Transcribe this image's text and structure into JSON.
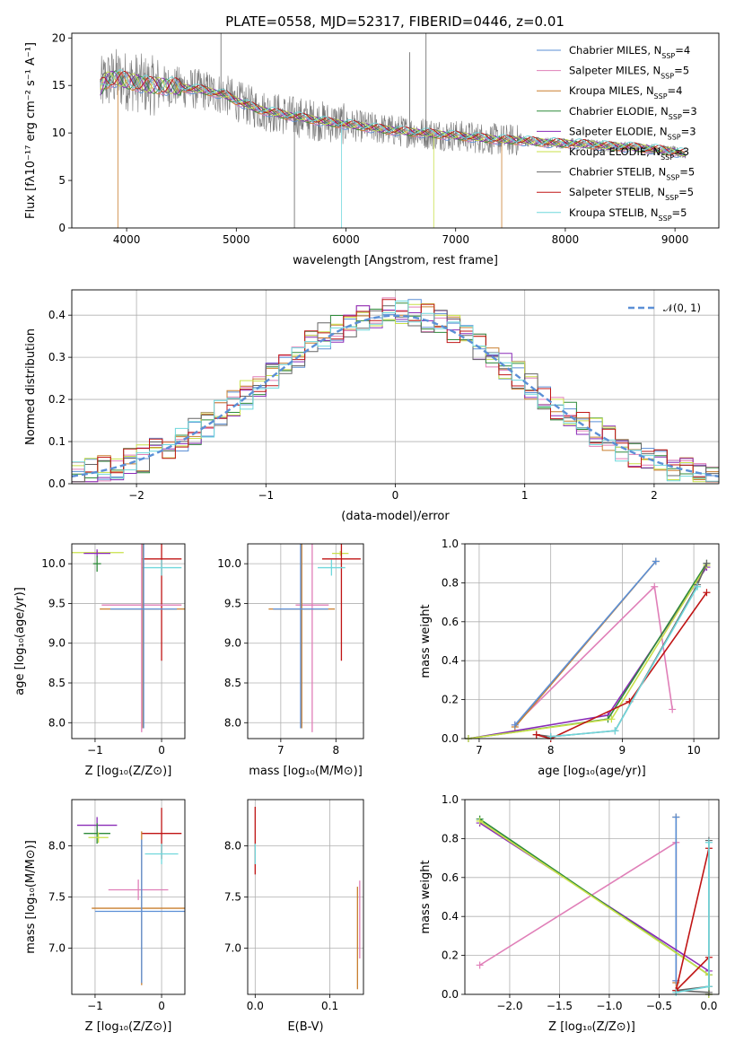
{
  "figure": {
    "title": "PLATE=0558, MJD=52317, FIBERID=0446, z=0.01"
  },
  "colors": {
    "Chabrier MILES": "#5b8fd6",
    "Salpeter MILES": "#e07fb8",
    "Kroupa MILES": "#c97f2f",
    "Chabrier ELODIE": "#2e8b3a",
    "Salpeter ELODIE": "#8a2bb8",
    "Kroupa ELODIE": "#c8e04a",
    "Chabrier STELIB": "#666666",
    "Salpeter STELIB": "#c01515",
    "Kroupa STELIB": "#6fd7dc",
    "gaussian": "#5b8fd6"
  },
  "legend_models": [
    {
      "name": "Chabrier MILES",
      "n": "4"
    },
    {
      "name": "Salpeter MILES",
      "n": "5"
    },
    {
      "name": "Kroupa MILES",
      "n": "4"
    },
    {
      "name": "Chabrier ELODIE",
      "n": "3"
    },
    {
      "name": "Salpeter ELODIE",
      "n": "3"
    },
    {
      "name": "Kroupa ELODIE",
      "n": "3"
    },
    {
      "name": "Chabrier STELIB",
      "n": "5"
    },
    {
      "name": "Salpeter STELIB",
      "n": "5"
    },
    {
      "name": "Kroupa STELIB",
      "n": "5"
    }
  ],
  "legend_suffix": {
    "prefix": ", N",
    "sub": "SSP",
    "eq": "="
  },
  "chart_data": [
    {
      "id": "spectrum",
      "type": "line",
      "title": "PLATE=0558, MJD=52317, FIBERID=0446, z=0.01",
      "xlabel": "wavelength [Angstrom, rest frame]",
      "ylabel": "Flux [fλ10⁻¹⁷ erg cm⁻² s⁻¹ A⁻¹]",
      "xlim": [
        3500,
        9400
      ],
      "ylim": [
        0,
        20.5
      ],
      "xticks": [
        4000,
        5000,
        6000,
        7000,
        8000,
        9000
      ],
      "yticks": [
        0,
        5,
        10,
        15,
        20
      ],
      "continuum": {
        "x": [
          3750,
          3800,
          3900,
          4000,
          4100,
          4200,
          4300,
          4500,
          4700,
          4900,
          5000,
          5200,
          5400,
          5600,
          5800,
          6000,
          6200,
          6400,
          6600,
          6800,
          7000,
          7200,
          7400,
          7600,
          7800,
          8000,
          8200,
          8400,
          8600,
          8800,
          9000,
          9100
        ],
        "y": [
          14.5,
          15.5,
          15.8,
          15.5,
          15.3,
          15.0,
          15.0,
          14.8,
          14.5,
          14.0,
          13.4,
          12.5,
          12.0,
          11.6,
          11.2,
          10.9,
          10.6,
          10.3,
          10.1,
          9.9,
          9.7,
          9.5,
          9.3,
          9.2,
          9.0,
          8.9,
          8.8,
          8.6,
          8.5,
          8.3,
          8.0,
          7.8
        ]
      },
      "spikes": [
        {
          "x": 3920,
          "y": 0,
          "model": "Kroupa MILES"
        },
        {
          "x": 5530,
          "y": 0,
          "model": "Chabrier STELIB"
        },
        {
          "x": 5960,
          "y": 0,
          "model": "Kroupa STELIB"
        },
        {
          "x": 6800,
          "y": 0,
          "model": "Kroupa ELODIE"
        },
        {
          "x": 7420,
          "y": 0,
          "model": "Kroupa MILES"
        },
        {
          "x": 6580,
          "y": 18.5,
          "model": "Chabrier STELIB"
        },
        {
          "x": 6730,
          "y": 20.5,
          "model": "Chabrier STELIB"
        },
        {
          "x": 4860,
          "y": 20.5,
          "model": "Chabrier STELIB"
        }
      ],
      "series": [
        "Chabrier MILES",
        "Salpeter MILES",
        "Kroupa MILES",
        "Chabrier ELODIE",
        "Salpeter ELODIE",
        "Kroupa ELODIE",
        "Chabrier STELIB",
        "Salpeter STELIB",
        "Kroupa STELIB"
      ]
    },
    {
      "id": "residuals",
      "type": "line",
      "xlabel": "(data-model)/error",
      "ylabel": "Normed distribution",
      "xlim": [
        -2.5,
        2.5
      ],
      "ylim": [
        0,
        0.46
      ],
      "xticks": [
        -2,
        -1,
        0,
        1,
        2
      ],
      "xticklabels": [
        "−2",
        "−1",
        "0",
        "1",
        "2"
      ],
      "yticks": [
        0.0,
        0.1,
        0.2,
        0.3,
        0.4
      ],
      "yticklabels": [
        "0.0",
        "0.1",
        "0.2",
        "0.3",
        "0.4"
      ],
      "bin_edges_from": -2.5,
      "bin_width": 0.1,
      "n_bins": 50,
      "reference": {
        "name": "𝒩(0, 1)",
        "mu": 0,
        "sigma": 1,
        "style": "dashed"
      },
      "series": [
        "Chabrier MILES",
        "Salpeter MILES",
        "Kroupa MILES",
        "Chabrier ELODIE",
        "Salpeter ELODIE",
        "Kroupa ELODIE",
        "Chabrier STELIB",
        "Salpeter STELIB",
        "Kroupa STELIB"
      ]
    },
    {
      "id": "age_vs_Z",
      "type": "scatter",
      "xlabel": "Z [log₁₀(Z/Z⊙)]",
      "ylabel": "age  [log₁₀(age/yr)]",
      "xlim": [
        -1.35,
        0.35
      ],
      "ylim": [
        7.8,
        10.25
      ],
      "xticks": [
        -1,
        0
      ],
      "xticklabels": [
        "−1",
        "0"
      ],
      "yticks": [
        8.0,
        8.5,
        9.0,
        9.5,
        10.0
      ],
      "yticklabels": [
        "8.0",
        "8.5",
        "9.0",
        "9.5",
        "10.0"
      ],
      "points": [
        {
          "model": "Kroupa ELODIE",
          "x": -0.97,
          "xerr": 0.4,
          "y": 10.14,
          "yerr": 0.02
        },
        {
          "model": "Salpeter ELODIE",
          "x": -0.97,
          "xerr": 0.2,
          "y": 10.13,
          "yerr": 0.05
        },
        {
          "model": "Chabrier ELODIE",
          "x": -0.97,
          "xerr": 0.06,
          "y": 10.0,
          "yerr": 0.1
        },
        {
          "model": "Salpeter STELIB",
          "x": 0.0,
          "xerr": 0.3,
          "y": 10.06,
          "yerr": 1.28
        },
        {
          "model": "Kroupa STELIB",
          "x": 0.0,
          "xerr": 0.3,
          "y": 9.95,
          "yerr": 0.1
        },
        {
          "model": "Salpeter MILES",
          "x": -0.3,
          "xerr": 0.6,
          "y": 9.48,
          "yerr": 1.6
        },
        {
          "model": "Kroupa MILES",
          "x": -0.28,
          "xerr": 0.65,
          "y": 9.43,
          "yerr": 1.5
        },
        {
          "model": "Chabrier MILES",
          "x": -0.27,
          "xerr": 0.5,
          "y": 9.43,
          "yerr": 1.5
        }
      ]
    },
    {
      "id": "age_vs_mass",
      "type": "scatter",
      "xlabel": "mass [log₁₀(M/M⊙)]",
      "xlim": [
        6.4,
        8.5
      ],
      "ylim": [
        7.8,
        10.25
      ],
      "xticks": [
        7,
        8
      ],
      "xticklabels": [
        "7",
        "8"
      ],
      "yticks": [
        8.0,
        8.5,
        9.0,
        9.5,
        10.0
      ],
      "yticklabels": [
        "8.0",
        "8.5",
        "9.0",
        "9.5",
        "10.0"
      ],
      "points": [
        {
          "model": "Kroupa ELODIE",
          "x": 8.08,
          "xerr": 0.15,
          "y": 10.13,
          "yerr": 0.03
        },
        {
          "model": "Salpeter STELIB",
          "x": 8.1,
          "xerr": 0.35,
          "y": 10.06,
          "yerr": 1.28
        },
        {
          "model": "Kroupa STELIB",
          "x": 7.92,
          "xerr": 0.25,
          "y": 9.95,
          "yerr": 0.1
        },
        {
          "model": "Salpeter MILES",
          "x": 7.57,
          "xerr": 0.3,
          "y": 9.48,
          "yerr": 1.6
        },
        {
          "model": "Kroupa MILES",
          "x": 7.38,
          "xerr": 0.6,
          "y": 9.43,
          "yerr": 1.5
        },
        {
          "model": "Chabrier MILES",
          "x": 7.36,
          "xerr": 0.5,
          "y": 9.43,
          "yerr": 1.5
        }
      ]
    },
    {
      "id": "massweight_vs_age",
      "type": "line",
      "ylabel": "mass weight",
      "xlabel": "age  [log₁₀(age/yr)]",
      "xlim": [
        6.8,
        10.35
      ],
      "ylim": [
        0,
        1.0
      ],
      "xticks": [
        7,
        8,
        9,
        10
      ],
      "xticklabels": [
        "7",
        "8",
        "9",
        "10"
      ],
      "yticks": [
        0.0,
        0.2,
        0.4,
        0.6,
        0.8,
        1.0
      ],
      "yticklabels": [
        "0.0",
        "0.2",
        "0.4",
        "0.6",
        "0.8",
        "1.0"
      ],
      "series": [
        {
          "model": "Salpeter MILES",
          "x": [
            7.5,
            9.45,
            9.7
          ],
          "y": [
            0.07,
            0.78,
            0.15
          ]
        },
        {
          "model": "Kroupa MILES",
          "x": [
            7.5,
            9.47
          ],
          "y": [
            0.06,
            0.91
          ]
        },
        {
          "model": "Chabrier MILES",
          "x": [
            7.5,
            9.47
          ],
          "y": [
            0.07,
            0.91
          ]
        },
        {
          "model": "Salpeter ELODIE",
          "x": [
            6.85,
            8.8,
            10.18
          ],
          "y": [
            0.0,
            0.12,
            0.88
          ]
        },
        {
          "model": "Chabrier ELODIE",
          "x": [
            6.85,
            8.8,
            10.18
          ],
          "y": [
            0.0,
            0.1,
            0.9
          ]
        },
        {
          "model": "Kroupa ELODIE",
          "x": [
            6.85,
            8.85,
            10.18
          ],
          "y": [
            0.0,
            0.1,
            0.89
          ]
        },
        {
          "model": "Chabrier STELIB",
          "x": [
            7.8,
            8.0,
            8.9,
            10.05,
            10.18
          ],
          "y": [
            0.02,
            0.01,
            0.04,
            0.79,
            0.9
          ]
        },
        {
          "model": "Salpeter STELIB",
          "x": [
            7.8,
            8.0,
            9.1,
            10.18
          ],
          "y": [
            0.02,
            0.0,
            0.19,
            0.75
          ]
        },
        {
          "model": "Kroupa STELIB",
          "x": [
            8.0,
            8.9,
            10.05
          ],
          "y": [
            0.01,
            0.04,
            0.78
          ]
        }
      ]
    },
    {
      "id": "mass_vs_Z",
      "type": "scatter",
      "xlabel": "Z [log₁₀(Z/Z⊙)]",
      "ylabel": "mass [log₁₀(M/M⊙)]",
      "xlim": [
        -1.35,
        0.35
      ],
      "ylim": [
        6.55,
        8.45
      ],
      "xticks": [
        -1,
        0
      ],
      "xticklabels": [
        "−1",
        "0"
      ],
      "yticks": [
        7.0,
        7.5,
        8.0
      ],
      "yticklabels": [
        "7.0",
        "7.5",
        "8.0"
      ],
      "points": [
        {
          "model": "Salpeter ELODIE",
          "x": -0.97,
          "xerr": 0.3,
          "y": 8.2,
          "yerr": 0.08
        },
        {
          "model": "Chabrier ELODIE",
          "x": -0.97,
          "xerr": 0.2,
          "y": 8.12,
          "yerr": 0.1
        },
        {
          "model": "Kroupa ELODIE",
          "x": -0.95,
          "xerr": 0.15,
          "y": 8.08,
          "yerr": 0.05
        },
        {
          "model": "Salpeter STELIB",
          "x": 0.0,
          "xerr": 0.3,
          "y": 8.12,
          "yerr": 0.25
        },
        {
          "model": "Kroupa STELIB",
          "x": 0.0,
          "xerr": 0.25,
          "y": 7.92,
          "yerr": 0.1
        },
        {
          "model": "Salpeter MILES",
          "x": -0.35,
          "xerr": 0.45,
          "y": 7.57,
          "yerr": 0.1
        },
        {
          "model": "Kroupa MILES",
          "x": -0.3,
          "xerr": 0.75,
          "y": 7.39,
          "yerr": 0.75
        },
        {
          "model": "Chabrier MILES",
          "x": -0.3,
          "xerr": 0.7,
          "y": 7.36,
          "yerr": 0.7
        }
      ]
    },
    {
      "id": "mass_vs_ebv",
      "type": "scatter",
      "xlabel": "E(B-V)",
      "xlim": [
        -0.01,
        0.145
      ],
      "ylim": [
        6.55,
        8.45
      ],
      "xticks": [
        0.0,
        0.1
      ],
      "xticklabels": [
        "0.0",
        "0.1"
      ],
      "yticks": [
        7.0,
        7.5,
        8.0
      ],
      "yticklabels": [
        "7.0",
        "7.5",
        "8.0"
      ],
      "points": [
        {
          "model": "Salpeter STELIB",
          "x": 0.0,
          "xerr": 0.0,
          "y": 8.05,
          "yerr": 0.33
        },
        {
          "model": "Kroupa STELIB",
          "x": 0.0,
          "xerr": 0.0,
          "y": 7.92,
          "yerr": 0.1
        },
        {
          "model": "Salpeter MILES",
          "x": 0.14,
          "xerr": 0.0,
          "y": 7.28,
          "yerr": 0.38
        },
        {
          "model": "Kroupa MILES",
          "x": 0.137,
          "xerr": 0.0,
          "y": 7.1,
          "yerr": 0.5
        }
      ]
    },
    {
      "id": "massweight_vs_Z",
      "type": "line",
      "ylabel": "mass weight",
      "xlabel": "Z [log₁₀(Z/Z⊙)]",
      "xlim": [
        -2.45,
        0.1
      ],
      "ylim": [
        0,
        1.0
      ],
      "xticks": [
        -2.0,
        -1.5,
        -1.0,
        -0.5,
        0.0
      ],
      "xticklabels": [
        "−2.0",
        "−1.5",
        "−1.0",
        "−0.5",
        "0.0"
      ],
      "yticks": [
        0.0,
        0.2,
        0.4,
        0.6,
        0.8,
        1.0
      ],
      "yticklabels": [
        "0.0",
        "0.2",
        "0.4",
        "0.6",
        "0.8",
        "1.0"
      ],
      "series": [
        {
          "model": "Salpeter MILES",
          "x": [
            -2.3,
            -0.33,
            -0.33
          ],
          "y": [
            0.15,
            0.78,
            0.07
          ]
        },
        {
          "model": "Kroupa MILES",
          "x": [
            -0.33,
            -0.33
          ],
          "y": [
            0.91,
            0.06
          ]
        },
        {
          "model": "Chabrier MILES",
          "x": [
            -0.33,
            -0.33
          ],
          "y": [
            0.91,
            0.07
          ]
        },
        {
          "model": "Salpeter ELODIE",
          "x": [
            -2.3,
            0.0,
            0.0
          ],
          "y": [
            0.88,
            0.12,
            0.0
          ]
        },
        {
          "model": "Chabrier ELODIE",
          "x": [
            -2.3,
            0.0,
            0.0
          ],
          "y": [
            0.9,
            0.1,
            0.0
          ]
        },
        {
          "model": "Kroupa ELODIE",
          "x": [
            -2.3,
            0.0,
            0.0
          ],
          "y": [
            0.89,
            0.1,
            0.0
          ]
        },
        {
          "model": "Chabrier STELIB",
          "x": [
            0.0,
            0.0,
            -0.33,
            0.0
          ],
          "y": [
            0.79,
            0.04,
            0.02,
            0.01
          ]
        },
        {
          "model": "Salpeter STELIB",
          "x": [
            0.0,
            -0.33,
            0.0
          ],
          "y": [
            0.19,
            0.02,
            0.75
          ]
        },
        {
          "model": "Kroupa STELIB",
          "x": [
            0.0,
            0.0,
            -0.33
          ],
          "y": [
            0.78,
            0.04,
            0.01
          ]
        }
      ]
    }
  ]
}
